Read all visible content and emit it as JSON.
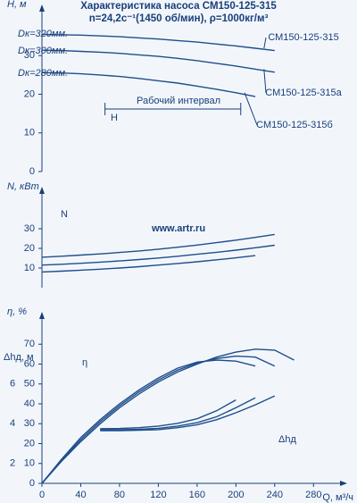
{
  "chart_data": [
    {
      "type": "line",
      "title": "Характеристика насоса СМ150-125-315",
      "subtitle": "n=24,2с⁻¹(1450 об/мин), ρ=1000кг/м³",
      "y_label": "H, м",
      "xlim": [
        0,
        300
      ],
      "ylim": [
        0,
        40
      ],
      "yticks": [
        0,
        10,
        20,
        30
      ],
      "grid": false,
      "x": [
        0,
        20,
        40,
        60,
        80,
        100,
        120,
        140,
        160,
        180,
        200,
        220,
        240
      ],
      "series": [
        {
          "name": "СМ150-125-315",
          "color": "#1f4e8c",
          "values": [
            35.5,
            35.4,
            35.3,
            35.1,
            34.9,
            34.6,
            34.3,
            33.9,
            33.5,
            33.0,
            32.5,
            31.9,
            31.3
          ]
        },
        {
          "name": "СМ150-125-315а",
          "color": "#1f4e8c",
          "values": [
            31.4,
            31.3,
            31.1,
            30.9,
            30.6,
            30.2,
            29.8,
            29.3,
            28.7,
            28.0,
            27.3,
            26.5,
            25.7
          ]
        },
        {
          "name": "СМ150-125-315б",
          "color": "#1f4e8c",
          "values": [
            25.6,
            25.5,
            25.3,
            25.0,
            24.6,
            24.1,
            23.5,
            22.9,
            22.1,
            21.3,
            20.4,
            19.4,
            null
          ]
        }
      ],
      "annotations": [
        "Dк=320мм.",
        "Dк=300мм.",
        "Dк=280мм.",
        "H",
        "Рабочий интервал"
      ],
      "operating_range": [
        65,
        205
      ]
    },
    {
      "type": "line",
      "y_label": "N, кВт",
      "xlim": [
        0,
        300
      ],
      "ylim": [
        0,
        45
      ],
      "yticks": [
        10,
        20,
        30
      ],
      "grid": false,
      "x": [
        0,
        20,
        40,
        60,
        80,
        100,
        120,
        140,
        160,
        180,
        200,
        220,
        240
      ],
      "series": [
        {
          "color": "#1f4e8c",
          "values": [
            15.5,
            16.0,
            16.6,
            17.2,
            17.9,
            18.7,
            19.6,
            20.6,
            21.7,
            22.9,
            24.2,
            25.6,
            27.1
          ]
        },
        {
          "color": "#1f4e8c",
          "values": [
            11.5,
            11.9,
            12.4,
            13.0,
            13.6,
            14.3,
            15.1,
            16.0,
            17.0,
            18.0,
            19.1,
            20.3,
            21.6
          ]
        },
        {
          "color": "#1f4e8c",
          "values": [
            8.0,
            8.4,
            8.9,
            9.4,
            10.0,
            10.7,
            11.5,
            12.3,
            13.2,
            14.2,
            15.2,
            16.3,
            null
          ]
        }
      ],
      "annotations": [
        "N",
        "www.artr.ru"
      ]
    },
    {
      "type": "line",
      "y_label": "η, %",
      "y2_label": "Δhд, м",
      "x_label": "Q, м³/ч",
      "xlim": [
        0,
        300
      ],
      "xticks": [
        0,
        40,
        80,
        120,
        160,
        200,
        240,
        280
      ],
      "ylim": [
        0,
        80
      ],
      "yticks": [
        0,
        10,
        20,
        30,
        40,
        50,
        60,
        70
      ],
      "y2lim": [
        1,
        9
      ],
      "y2ticks": [
        2,
        4,
        6
      ],
      "grid": false,
      "x": [
        0,
        20,
        40,
        60,
        80,
        100,
        120,
        140,
        160,
        180,
        200,
        220,
        240,
        260
      ],
      "series": [
        {
          "color": "#1f4e8c",
          "values": [
            0,
            11,
            21,
            30,
            38,
            45,
            51,
            56,
            60,
            63.5,
            66,
            67.5,
            67,
            62
          ]
        },
        {
          "color": "#1f4e8c",
          "values": [
            0,
            11.5,
            22,
            31,
            39,
            46,
            52,
            57,
            60.5,
            62.8,
            64,
            63.5,
            59,
            null
          ]
        },
        {
          "color": "#1f4e8c",
          "values": [
            0,
            12,
            23,
            32,
            40,
            47,
            53,
            58,
            61,
            62,
            61.5,
            59,
            null,
            null
          ]
        },
        {
          "color": "#1f4e8c",
          "axis": "y2",
          "values": [
            null,
            null,
            null,
            3.65,
            3.65,
            3.67,
            3.7,
            3.8,
            3.95,
            4.2,
            4.55,
            4.95,
            5.4,
            null
          ]
        },
        {
          "color": "#1f4e8c",
          "axis": "y2",
          "values": [
            null,
            null,
            null,
            3.7,
            3.7,
            3.72,
            3.77,
            3.88,
            4.05,
            4.35,
            4.8,
            5.3,
            null,
            null
          ]
        },
        {
          "color": "#1f4e8c",
          "axis": "y2",
          "values": [
            null,
            null,
            null,
            3.75,
            3.76,
            3.8,
            3.88,
            4.02,
            4.25,
            4.65,
            5.2,
            null,
            null,
            null
          ]
        }
      ],
      "annotations": [
        "η",
        "Δhд"
      ]
    }
  ]
}
